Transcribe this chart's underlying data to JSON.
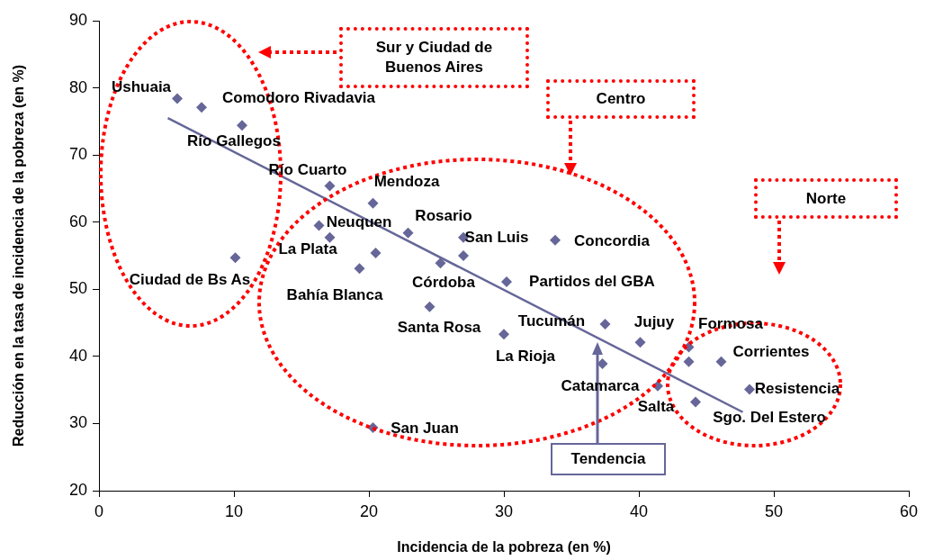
{
  "chart_data": {
    "type": "scatter",
    "xlabel": "Incidencia de la pobreza (en %)",
    "ylabel": "Reducción en la tasa de incidencia de la pobreza (en %)",
    "xlim": [
      0,
      60
    ],
    "xticks": [
      0,
      10,
      20,
      30,
      40,
      50,
      60
    ],
    "ylim": [
      20,
      90
    ],
    "yticks": [
      20,
      30,
      40,
      50,
      60,
      70,
      80,
      90
    ],
    "grid": false,
    "legend": false,
    "series": [
      {
        "type": "scatter",
        "color": "#666699",
        "marker": "diamond",
        "x": [
          5.8,
          7.6,
          10.6,
          17.1,
          20.3,
          16.3,
          17.1,
          10.1,
          20.5,
          19.3,
          22.9,
          27.0,
          27.0,
          25.3,
          33.8,
          30.2,
          24.5,
          30.0,
          20.3,
          37.5,
          40.1,
          43.7,
          43.7,
          46.1,
          37.3,
          41.4,
          44.2,
          48.2
        ],
        "values": [
          78.4,
          77.1,
          74.4,
          65.4,
          62.8,
          59.5,
          57.7,
          54.7,
          55.4,
          53.1,
          58.4,
          57.7,
          55.0,
          53.9,
          57.3,
          51.1,
          47.4,
          43.3,
          29.4,
          44.8,
          42.1,
          41.4,
          39.2,
          39.2,
          38.9,
          35.6,
          33.2,
          35.1
        ]
      },
      {
        "type": "line",
        "color": "#666699",
        "marker": "none",
        "x": [
          5.1,
          47.7
        ],
        "values": [
          75.5,
          31.7
        ]
      }
    ],
    "annotations": [
      "Ushuaia",
      "Comodoro Rivadavia",
      "Río Gallegos",
      "Río Cuarto",
      "Mendoza",
      "Neuquen",
      "La Plata",
      "Ciudad de Bs As",
      "Bahía Blanca",
      "Rosario",
      "San Luis",
      "Concordia",
      "Córdoba",
      "Partidos del GBA",
      "Santa Rosa",
      "Tucumán",
      "La Rioja",
      "Jujuy",
      "Formosa",
      "Corrientes",
      "Catamarca",
      "Salta",
      "Sgo. Del Estero",
      "Resistencia",
      "San Juan",
      "Sur y Ciudad de Buenos Aires",
      "Centro",
      "Norte",
      "Tendencia"
    ]
  }
}
